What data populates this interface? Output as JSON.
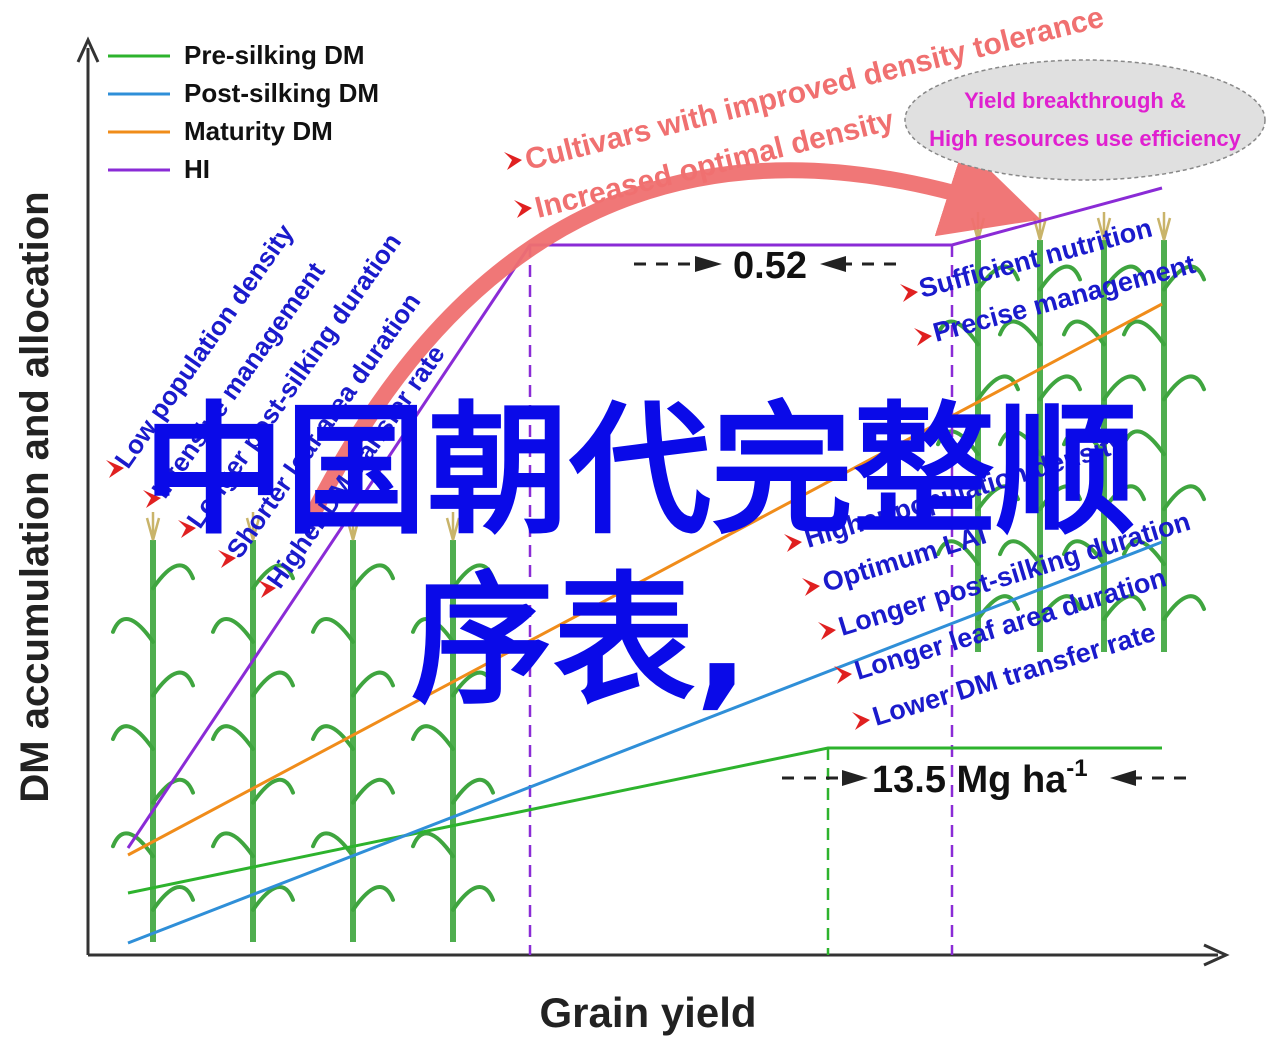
{
  "chart_data": {
    "type": "line",
    "xlabel": "Grain yield",
    "ylabel": "DM accumulation and allocation",
    "series": [
      {
        "name": "Pre-silking DM",
        "color": "#2db32d"
      },
      {
        "name": "Post-silking DM",
        "color": "#2f8fd8"
      },
      {
        "name": "Maturity DM",
        "color": "#f08c1a"
      },
      {
        "name": "HI",
        "color": "#8a2bd6"
      }
    ],
    "annotations": {
      "hi_gap": "0.52",
      "yield_gap_value": "13.5 Mg ha",
      "yield_gap_sup": "-1",
      "curve_top": "Cultivars with improved density tolerance",
      "curve_bottom": "Increased optimal density",
      "ellipse_line1": "Yield breakthrough &",
      "ellipse_line2": "High resources use efficiency",
      "left_factors": [
        "Low population density",
        "Intensive management",
        "Longer post-silking duration",
        "Shorter leaf area duration",
        "Higher DM transfer rate"
      ],
      "right_top_factors": [
        "Sufficient nutrition",
        "Precise management"
      ],
      "right_factors": [
        "Higher population density",
        "Optimum LAI",
        "Longer  post-silking duration",
        "Longer leaf area duration",
        "Lower DM transfer rate"
      ]
    },
    "colors": {
      "arrow": "#f07070",
      "blue_text": "#1a1acc",
      "magenta_text": "#e020d0",
      "red_marker": "#e02020"
    }
  },
  "watermark": {
    "line1": "中国朝代完整顺",
    "line2": "序表,"
  }
}
